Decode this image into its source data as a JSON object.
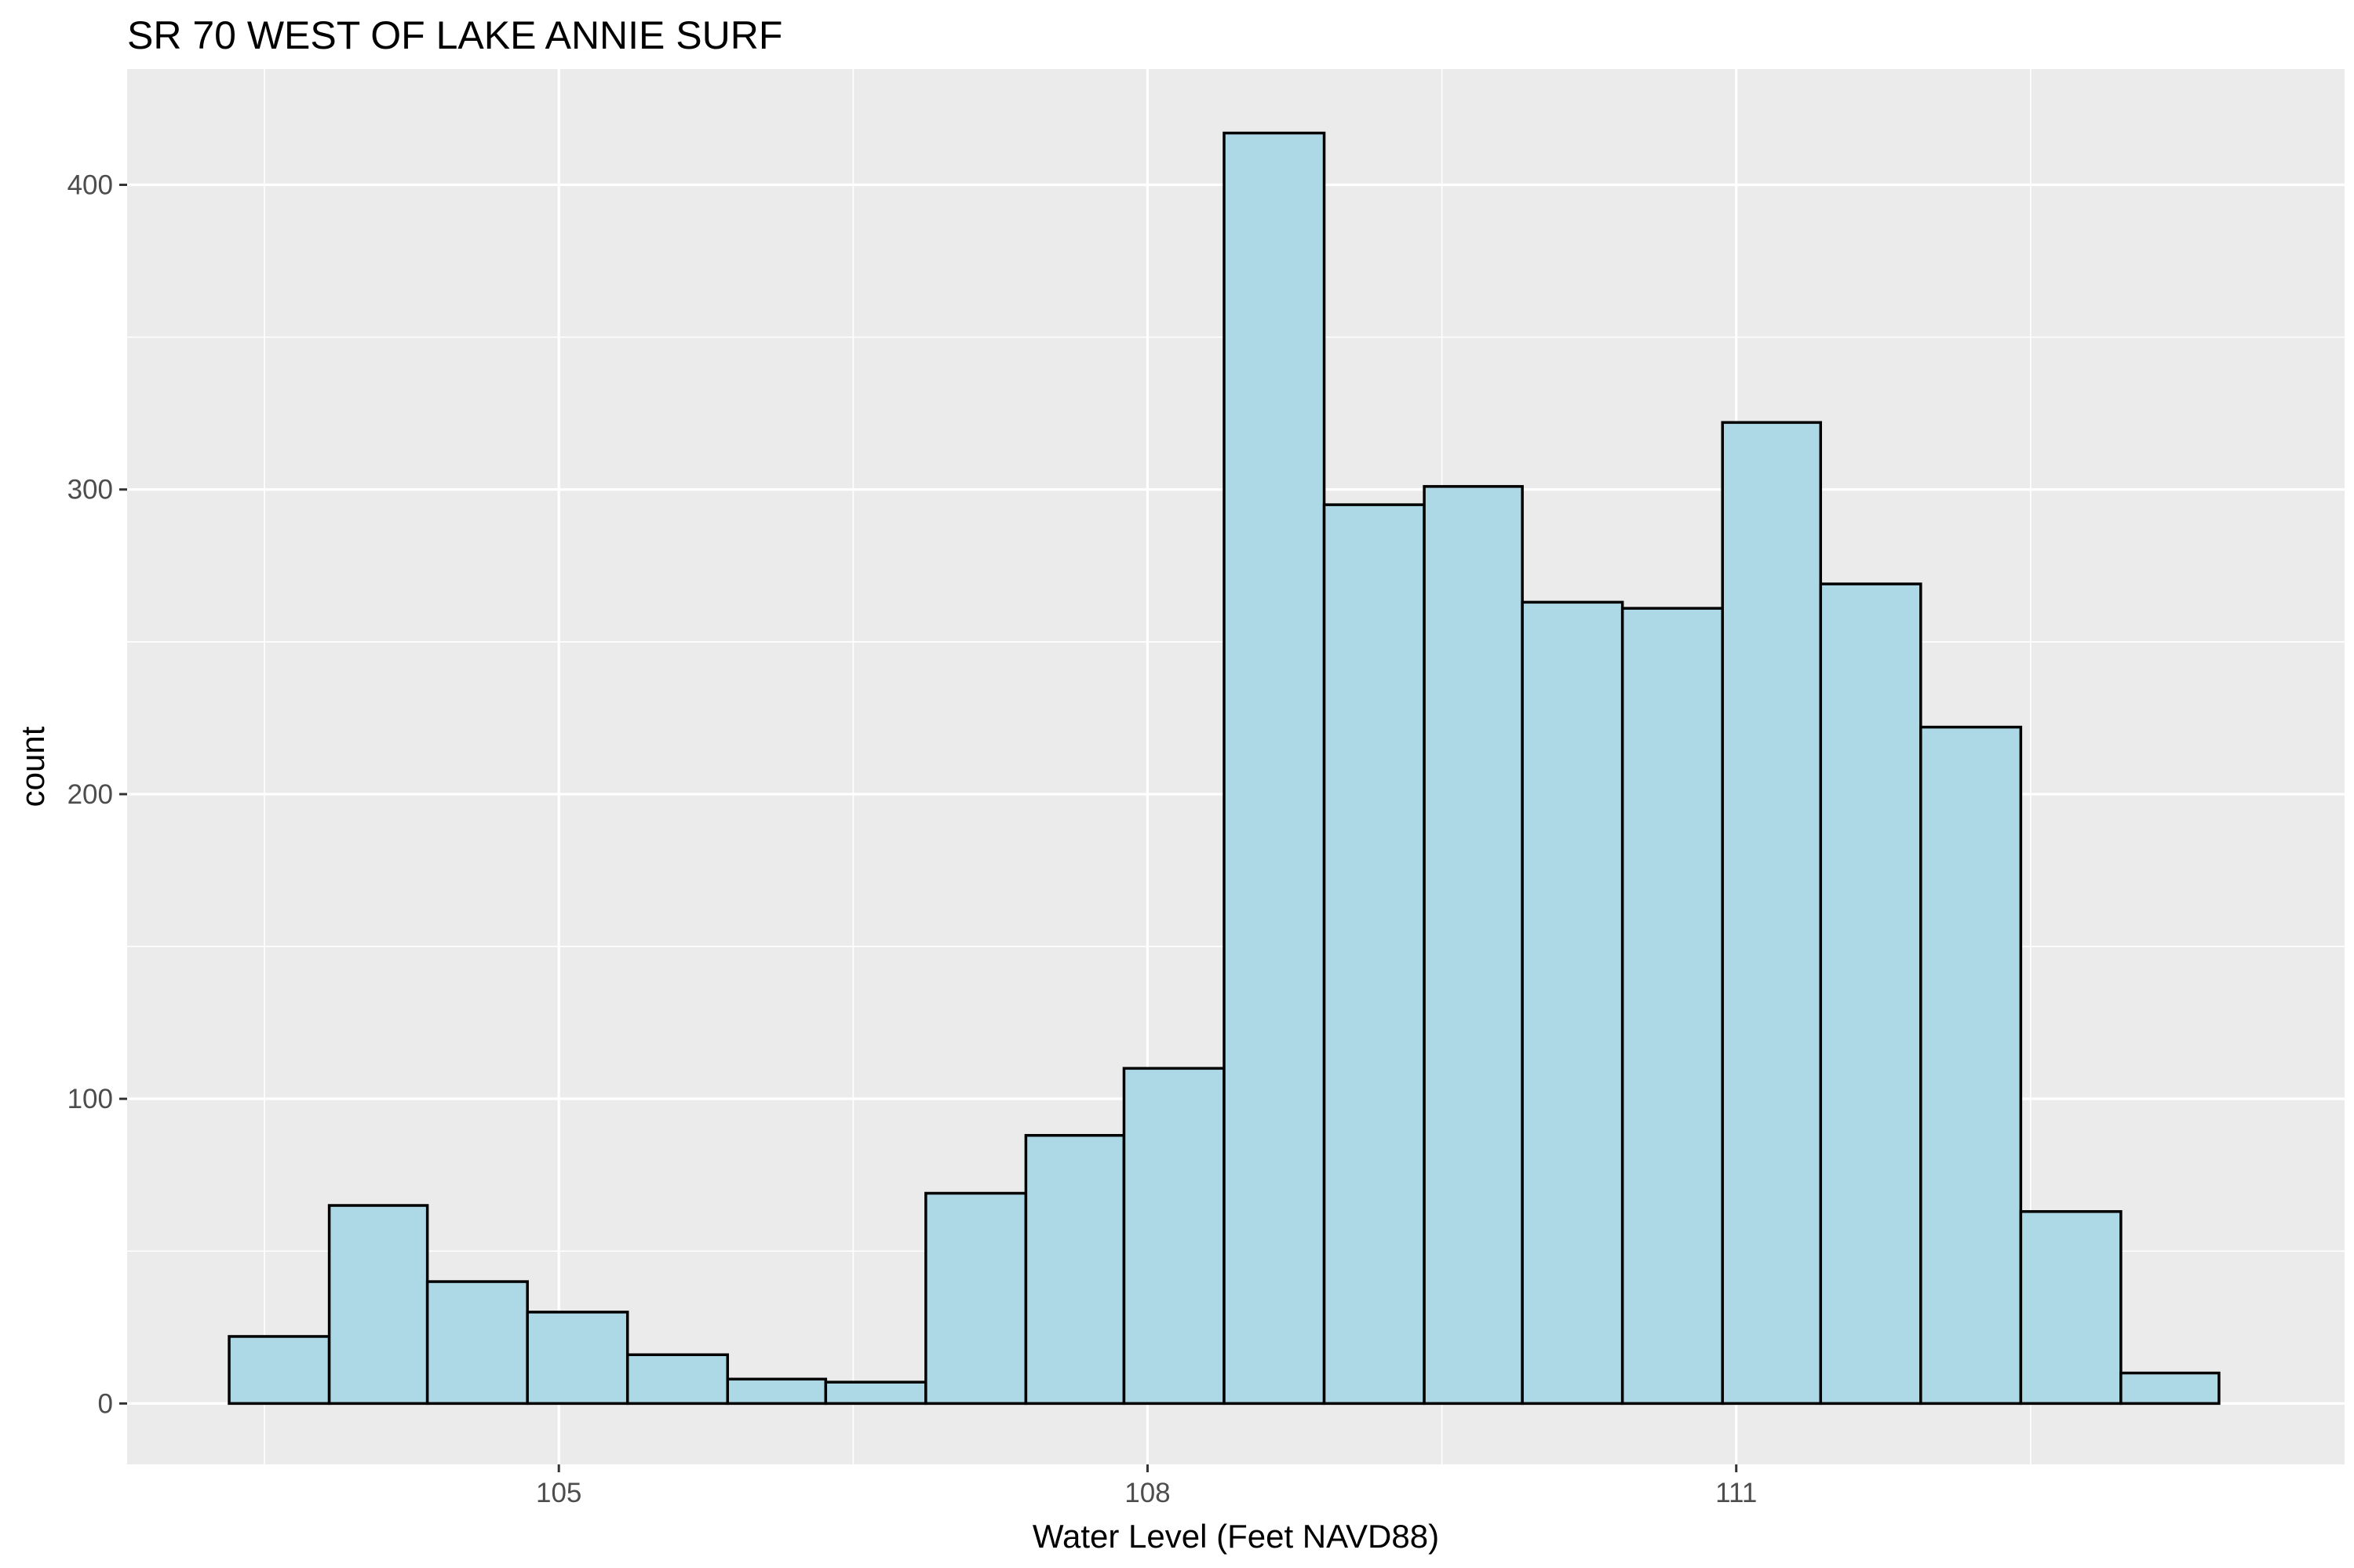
{
  "chart_data": {
    "type": "bar",
    "title": "SR 70 WEST OF LAKE ANNIE SURF",
    "xlabel": "Water Level (Feet NAVD88)",
    "ylabel": "count",
    "xlim": [
      102.8,
      114.1
    ],
    "ylim": [
      -20,
      438
    ],
    "x_ticks": [
      105,
      108,
      111
    ],
    "x_tick_labels": [
      "105",
      "108",
      "111"
    ],
    "y_ticks": [
      0,
      100,
      200,
      300,
      400
    ],
    "y_tick_labels": [
      "0",
      "100",
      "200",
      "300",
      "400"
    ],
    "bin_edges": [
      103.32,
      103.83,
      104.33,
      104.84,
      105.35,
      105.86,
      106.36,
      106.87,
      107.38,
      107.88,
      108.39,
      108.9,
      109.41,
      109.91,
      110.42,
      110.93,
      111.43,
      111.94,
      112.45,
      112.96,
      113.46
    ],
    "counts": [
      22,
      65,
      40,
      30,
      16,
      8,
      7,
      69,
      88,
      110,
      417,
      295,
      301,
      263,
      261,
      322,
      269,
      222,
      63,
      10
    ],
    "grid": true,
    "colors": {
      "panel_background": "#ebebeb",
      "grid_line": "#ffffff",
      "bar_fill": "#add8e6",
      "bar_outline": "#000000"
    }
  }
}
